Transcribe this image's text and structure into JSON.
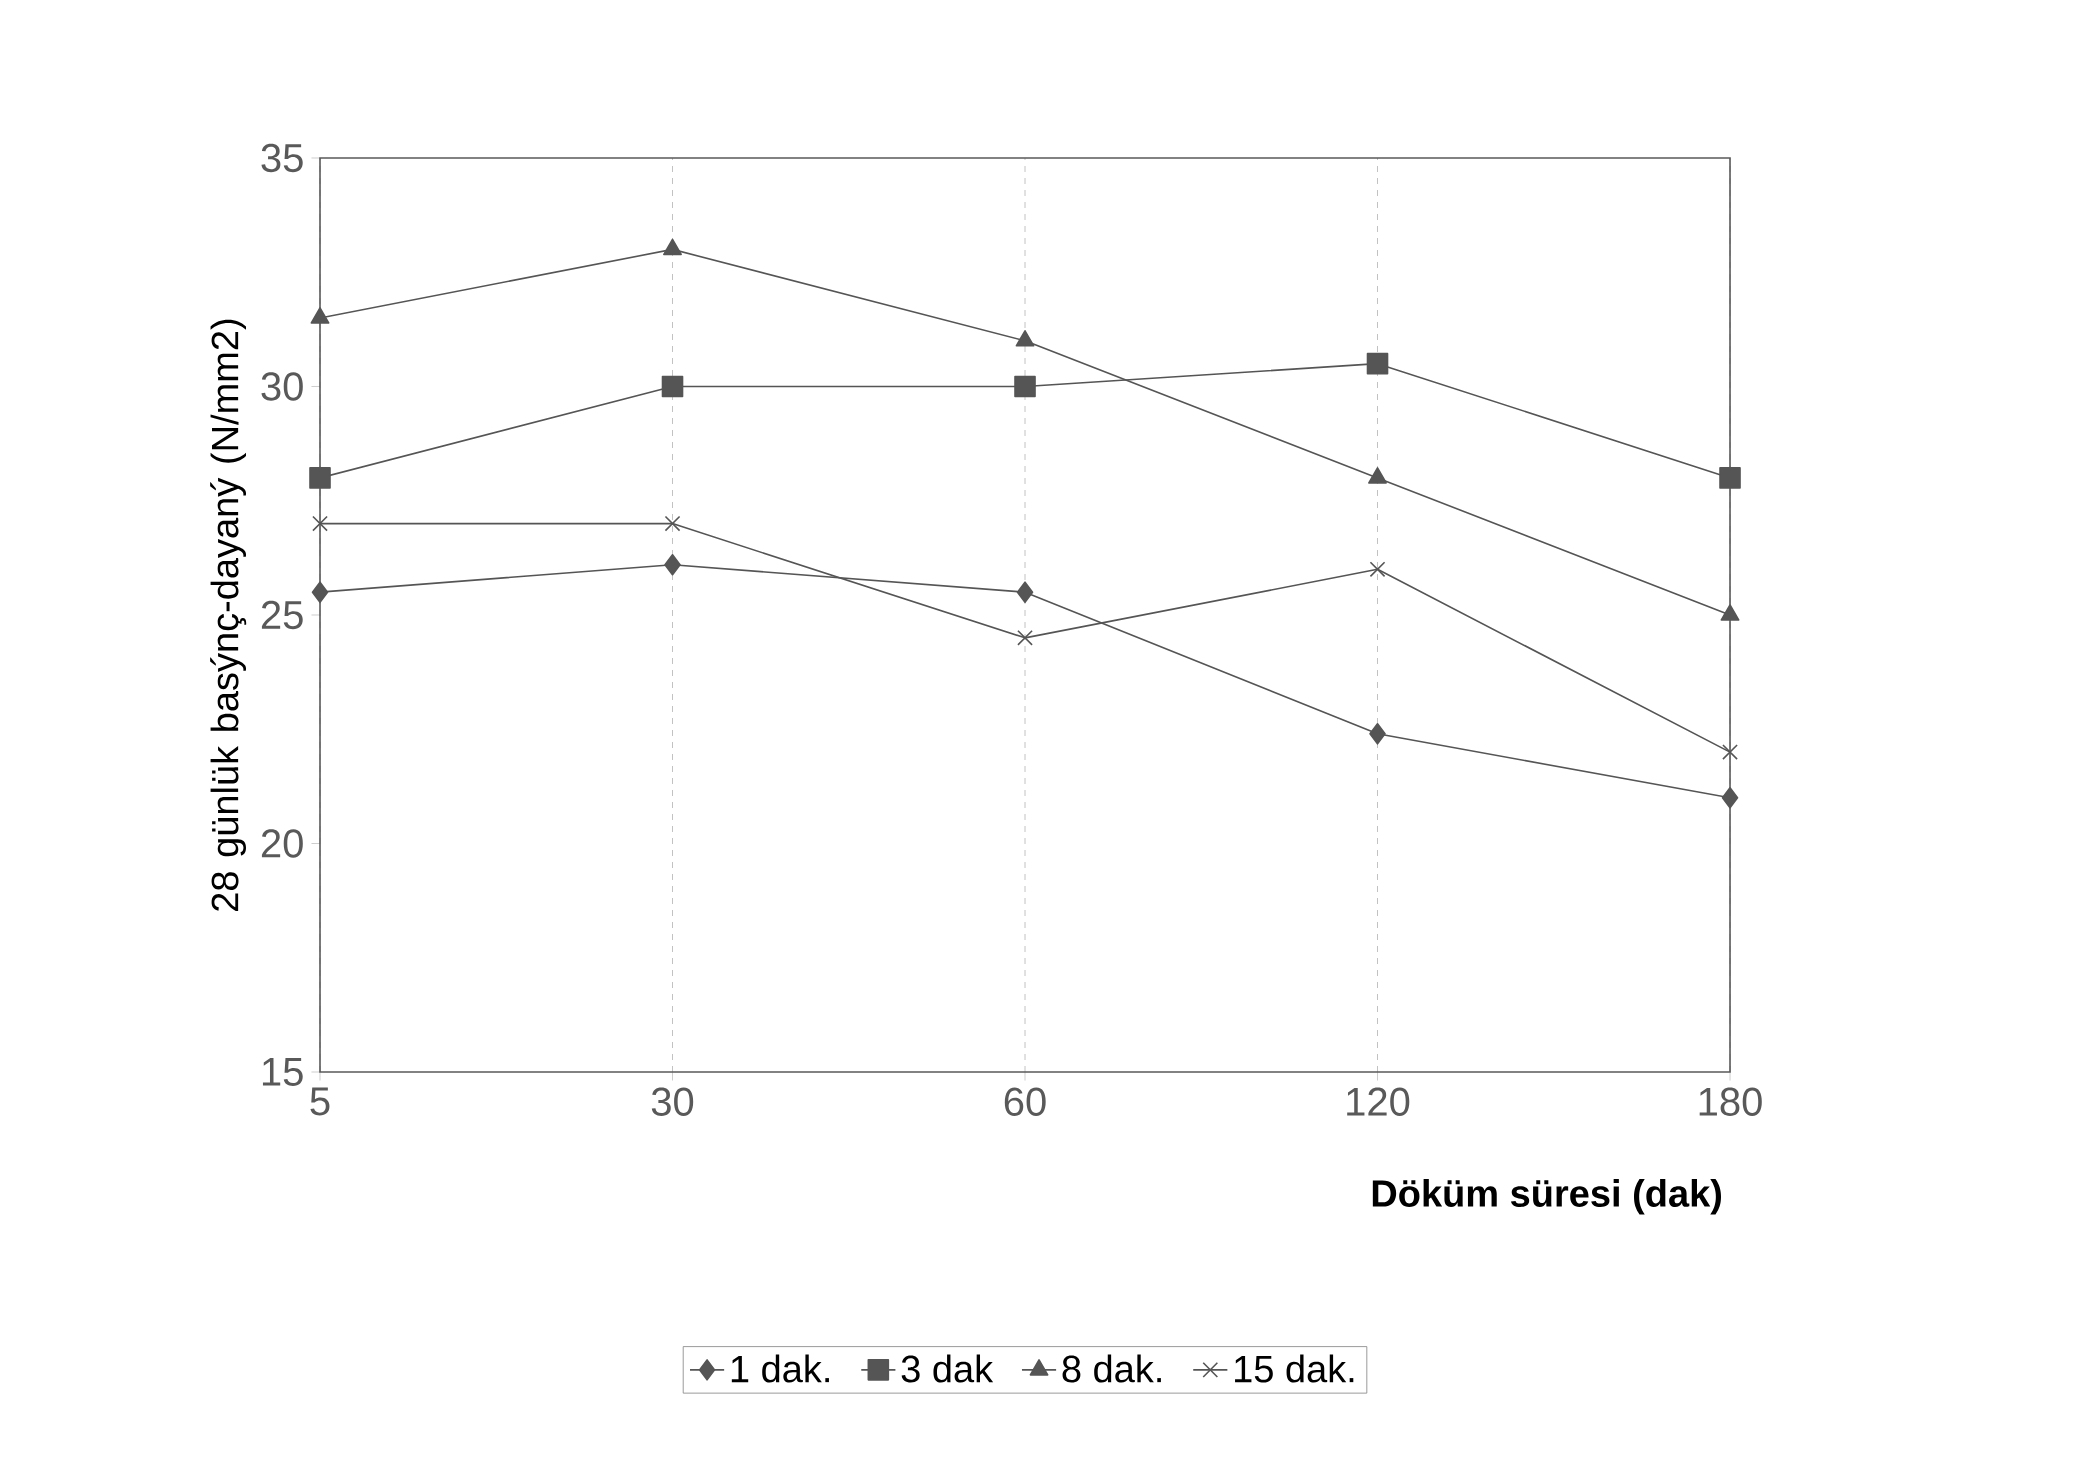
{
  "chart_data": {
    "type": "line",
    "xlabel": "Döküm süresi (dak)",
    "ylabel": "28 günlük basýnç-dayaný (N/mm2)",
    "categories": [
      "5",
      "30",
      "60",
      "120",
      "180"
    ],
    "ylim": [
      15,
      35
    ],
    "yticks": [
      15,
      20,
      25,
      30,
      35
    ],
    "grid": "x",
    "legend": "bottom",
    "line_style": "solid",
    "series": [
      {
        "name": "1 dak.",
        "color": "#555555",
        "marker": "diamond",
        "values": [
          25.5,
          26.1,
          25.5,
          22.4,
          21.0
        ]
      },
      {
        "name": "3 dak",
        "color": "#555555",
        "marker": "square",
        "values": [
          28.0,
          30.0,
          30.0,
          30.5,
          28.0
        ]
      },
      {
        "name": "8 dak.",
        "color": "#555555",
        "marker": "triangle",
        "values": [
          31.5,
          33.0,
          31.0,
          28.0,
          25.0
        ]
      },
      {
        "name": "15 dak.",
        "color": "#555555",
        "marker": "cross",
        "values": [
          27.0,
          27.0,
          24.5,
          26.0,
          22.0
        ]
      }
    ]
  }
}
